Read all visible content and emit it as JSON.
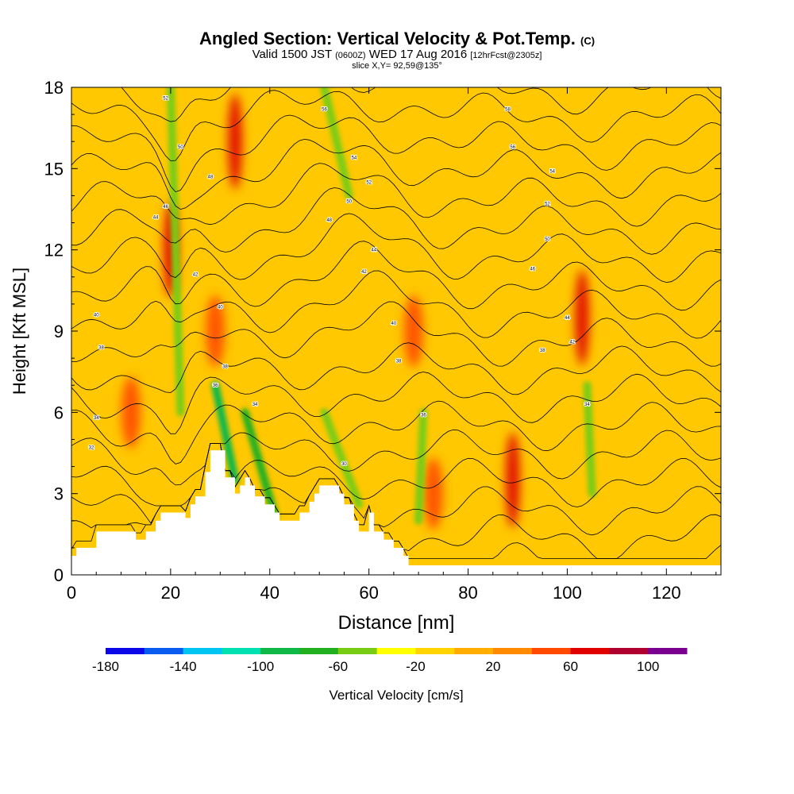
{
  "chart_data": {
    "type": "heatmap",
    "title_main": "Angled Section: Vertical Velocity & Pot.Temp.",
    "title_unit": "(C)",
    "subtitle_valid": "Valid 1500 JST",
    "subtitle_utc": "(0600Z)",
    "subtitle_date": "WED 17 Aug 2016",
    "subtitle_fcst": "[12hrFcst@2305z]",
    "slice_label": "slice X,Y= 92,59@135°",
    "xlabel": "Distance [nm]",
    "ylabel": "Height [Kft MSL]",
    "xlim": [
      0,
      131
    ],
    "ylim": [
      0,
      18
    ],
    "x_ticks": [
      "0",
      "20",
      "40",
      "60",
      "80",
      "100",
      "120"
    ],
    "y_ticks": [
      "0",
      "3",
      "6",
      "9",
      "12",
      "15",
      "18"
    ],
    "colorbar": {
      "label": "Vertical Velocity [cm/s]",
      "range": [
        -180,
        120
      ],
      "tick_labels": [
        "-180",
        "-140",
        "-100",
        "-60",
        "-20",
        "20",
        "60",
        "100"
      ],
      "colors": [
        "#0b07e8",
        "#0a5cf0",
        "#00c4f2",
        "#00e0b0",
        "#10b848",
        "#22b020",
        "#78cc14",
        "#ffff00",
        "#ffd400",
        "#ffae00",
        "#ff8a00",
        "#ff4a00",
        "#e00000",
        "#b00030",
        "#7a0090"
      ]
    },
    "field_background": "#ffc800",
    "terrain_profile_kft": [
      [
        0,
        0.7
      ],
      [
        1,
        1.0
      ],
      [
        5,
        1.6
      ],
      [
        9,
        1.6
      ],
      [
        13,
        1.3
      ],
      [
        15,
        1.6
      ],
      [
        17,
        2.0
      ],
      [
        18,
        2.3
      ],
      [
        22,
        2.3
      ],
      [
        23,
        2.1
      ],
      [
        24,
        2.6
      ],
      [
        25,
        2.9
      ],
      [
        27,
        3.8
      ],
      [
        28,
        4.6
      ],
      [
        30,
        4.6
      ],
      [
        31,
        3.6
      ],
      [
        33,
        3.0
      ],
      [
        34,
        3.3
      ],
      [
        35,
        3.6
      ],
      [
        36,
        3.3
      ],
      [
        37,
        2.9
      ],
      [
        39,
        2.6
      ],
      [
        41,
        2.3
      ],
      [
        42,
        2.0
      ],
      [
        45,
        2.0
      ],
      [
        46,
        2.3
      ],
      [
        48,
        2.7
      ],
      [
        49,
        3.0
      ],
      [
        50,
        3.3
      ],
      [
        53,
        3.3
      ],
      [
        54,
        3.0
      ],
      [
        55,
        2.6
      ],
      [
        57,
        2.0
      ],
      [
        58,
        1.6
      ],
      [
        60,
        2.3
      ],
      [
        61,
        1.6
      ],
      [
        63,
        1.3
      ],
      [
        65,
        1.0
      ],
      [
        67,
        0.7
      ],
      [
        68,
        0.35
      ],
      [
        131,
        0.35
      ]
    ],
    "updraft_maxima_cm_s": [
      {
        "x": 20,
        "y": 12,
        "w": 60
      },
      {
        "x": 33,
        "y": 16,
        "w": 60
      },
      {
        "x": 89,
        "y": 3.5,
        "w": 60
      },
      {
        "x": 103,
        "y": 9.5,
        "w": 60
      },
      {
        "x": 12,
        "y": 6,
        "w": 40
      },
      {
        "x": 29,
        "y": 9,
        "w": 40
      },
      {
        "x": 69,
        "y": 9,
        "w": 40
      },
      {
        "x": 73,
        "y": 3,
        "w": 40
      }
    ],
    "downdraft_bands_cm_s": [
      {
        "x": [
          20,
          22
        ],
        "y": [
          18,
          6
        ],
        "w": -60
      },
      {
        "x": [
          29,
          33
        ],
        "y": [
          7,
          3.5
        ],
        "w": -100
      },
      {
        "x": [
          35,
          41
        ],
        "y": [
          6,
          2.2
        ],
        "w": -80
      },
      {
        "x": [
          51,
          56
        ],
        "y": [
          18,
          14
        ],
        "w": -60
      },
      {
        "x": [
          51,
          58
        ],
        "y": [
          6,
          2.6
        ],
        "w": -60
      },
      {
        "x": [
          71,
          70
        ],
        "y": [
          6,
          2
        ],
        "w": -60
      },
      {
        "x": [
          104,
          105
        ],
        "y": [
          7,
          3
        ],
        "w": -60
      }
    ],
    "isentropes_C": {
      "range": [
        28,
        62
      ],
      "interval": 2,
      "labels": [
        {
          "x": 19,
          "y": 17.6,
          "text": "52"
        },
        {
          "x": 22,
          "y": 15.8,
          "text": "50"
        },
        {
          "x": 28,
          "y": 14.7,
          "text": "48"
        },
        {
          "x": 19,
          "y": 13.6,
          "text": "46"
        },
        {
          "x": 17,
          "y": 13.2,
          "text": "44"
        },
        {
          "x": 25,
          "y": 11.1,
          "text": "42"
        },
        {
          "x": 30,
          "y": 9.9,
          "text": "40"
        },
        {
          "x": 31,
          "y": 7.7,
          "text": "38"
        },
        {
          "x": 29,
          "y": 7.0,
          "text": "36"
        },
        {
          "x": 37,
          "y": 6.3,
          "text": "34"
        },
        {
          "x": 5,
          "y": 9.6,
          "text": "40"
        },
        {
          "x": 6,
          "y": 8.4,
          "text": "38"
        },
        {
          "x": 5,
          "y": 5.8,
          "text": "34"
        },
        {
          "x": 4,
          "y": 4.7,
          "text": "32"
        },
        {
          "x": 51,
          "y": 17.2,
          "text": "56"
        },
        {
          "x": 57,
          "y": 15.4,
          "text": "54"
        },
        {
          "x": 60,
          "y": 14.5,
          "text": "52"
        },
        {
          "x": 56,
          "y": 13.8,
          "text": "50"
        },
        {
          "x": 52,
          "y": 13.1,
          "text": "48"
        },
        {
          "x": 61,
          "y": 12.0,
          "text": "44"
        },
        {
          "x": 59,
          "y": 11.2,
          "text": "42"
        },
        {
          "x": 65,
          "y": 9.3,
          "text": "40"
        },
        {
          "x": 66,
          "y": 7.9,
          "text": "38"
        },
        {
          "x": 71,
          "y": 5.9,
          "text": "36"
        },
        {
          "x": 55,
          "y": 4.1,
          "text": "30"
        },
        {
          "x": 88,
          "y": 17.2,
          "text": "58"
        },
        {
          "x": 89,
          "y": 15.8,
          "text": "56"
        },
        {
          "x": 97,
          "y": 14.9,
          "text": "54"
        },
        {
          "x": 96,
          "y": 13.7,
          "text": "52"
        },
        {
          "x": 96,
          "y": 12.4,
          "text": "50"
        },
        {
          "x": 93,
          "y": 11.3,
          "text": "46"
        },
        {
          "x": 100,
          "y": 9.5,
          "text": "44"
        },
        {
          "x": 101,
          "y": 8.6,
          "text": "42"
        },
        {
          "x": 95,
          "y": 8.3,
          "text": "38"
        },
        {
          "x": 104,
          "y": 6.3,
          "text": "34"
        }
      ]
    }
  }
}
